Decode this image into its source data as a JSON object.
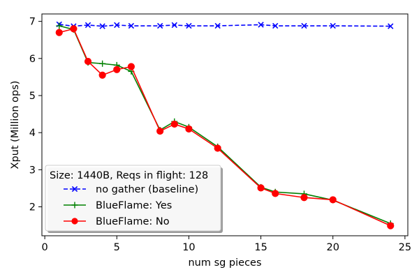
{
  "chart_data": {
    "type": "line",
    "title": "",
    "xlabel": "num sg pieces",
    "ylabel": "Xput (Million ops)",
    "xlim": [
      -0.2,
      25.2
    ],
    "ylim": [
      1.22,
      7.2
    ],
    "xticks": [
      0,
      5,
      10,
      15,
      20,
      25
    ],
    "yticks": [
      2,
      3,
      4,
      5,
      6,
      7
    ],
    "grid": false,
    "legend": {
      "title": "Size: 1440B, Reqs in flight: 128",
      "placement": "lower-left"
    },
    "series": [
      {
        "name": "no gather (baseline)",
        "color": "#0000ff",
        "line_style": "dashed",
        "marker": "x",
        "x": [
          1,
          2,
          3,
          4,
          5,
          6,
          8,
          9,
          10,
          12,
          15,
          16,
          18,
          20,
          24
        ],
        "y": [
          6.92,
          6.87,
          6.9,
          6.87,
          6.9,
          6.88,
          6.88,
          6.9,
          6.88,
          6.88,
          6.91,
          6.88,
          6.88,
          6.88,
          6.87
        ]
      },
      {
        "name": "BlueFlame: Yes",
        "color": "#008000",
        "line_style": "solid",
        "marker": "+",
        "x": [
          1,
          2,
          3,
          4,
          5,
          6,
          8,
          9,
          10,
          12,
          15,
          16,
          18,
          20,
          24
        ],
        "y": [
          6.88,
          6.78,
          5.89,
          5.86,
          5.82,
          5.65,
          4.07,
          4.3,
          4.15,
          3.62,
          2.53,
          2.4,
          2.35,
          2.18,
          1.55
        ]
      },
      {
        "name": "BlueFlame: No",
        "color": "#ff0000",
        "line_style": "solid",
        "marker": "o",
        "x": [
          1,
          2,
          3,
          4,
          5,
          6,
          8,
          9,
          10,
          12,
          15,
          16,
          18,
          20,
          24
        ],
        "y": [
          6.7,
          6.8,
          5.92,
          5.55,
          5.7,
          5.78,
          4.04,
          4.23,
          4.1,
          3.58,
          2.51,
          2.36,
          2.25,
          2.19,
          1.49
        ]
      }
    ]
  }
}
